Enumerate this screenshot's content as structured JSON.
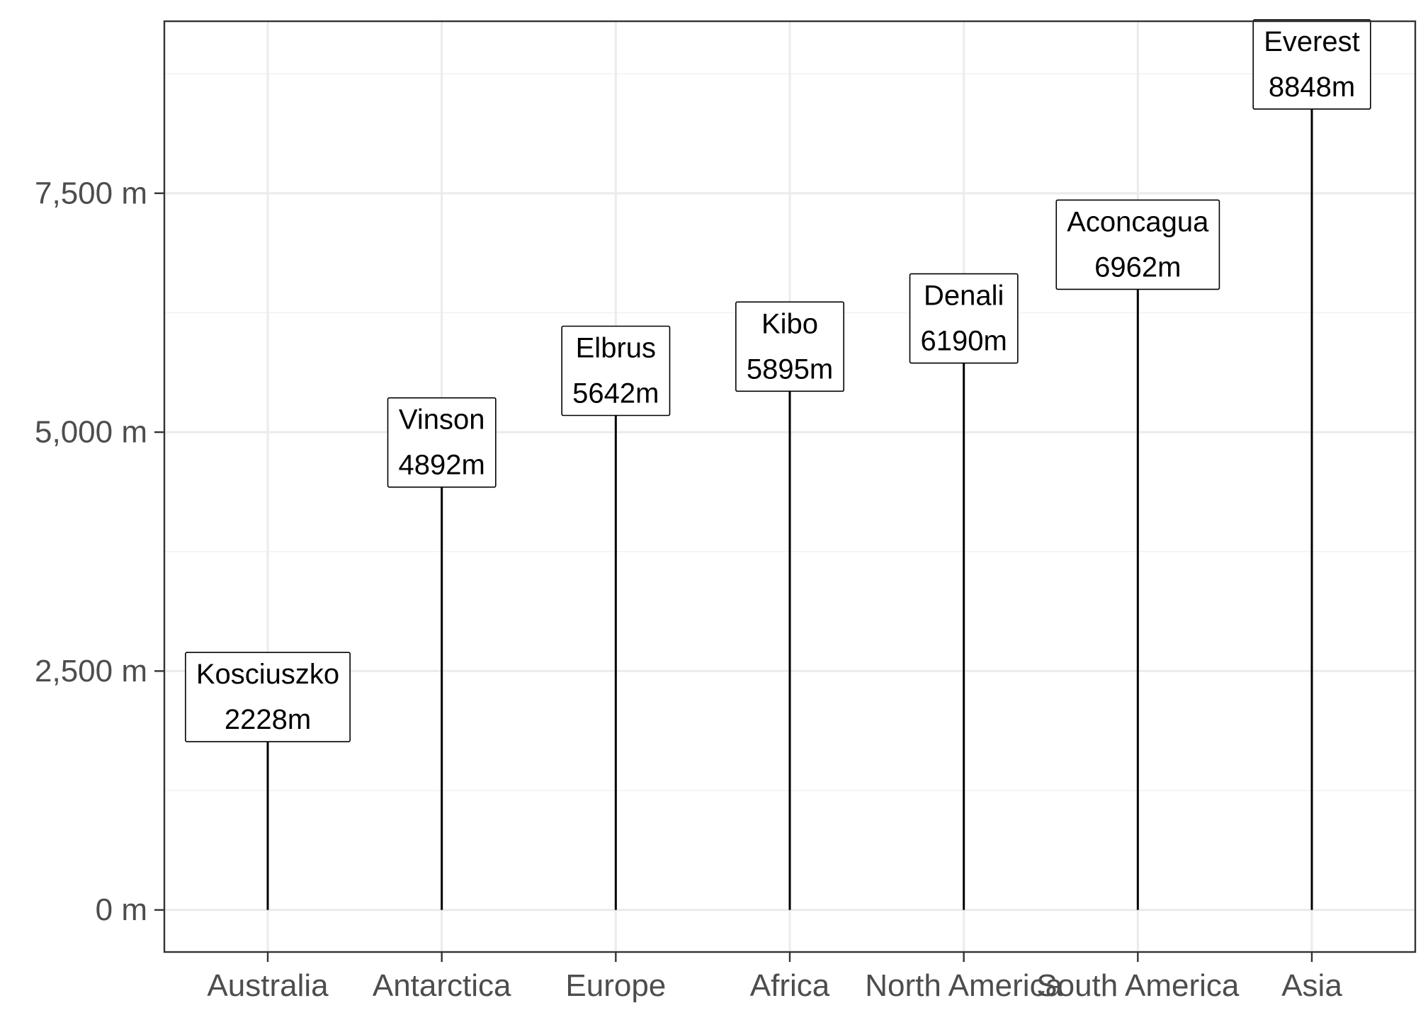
{
  "chart_data": {
    "type": "bar",
    "categories": [
      "Australia",
      "Antarctica",
      "Europe",
      "Africa",
      "North America",
      "South America",
      "Asia"
    ],
    "series": [
      {
        "values": [
          2228,
          4892,
          5642,
          5895,
          6190,
          6962,
          8848
        ]
      }
    ],
    "point_labels": [
      {
        "name": "Kosciuszko",
        "height": "2228m"
      },
      {
        "name": "Vinson",
        "height": "4892m"
      },
      {
        "name": "Elbrus",
        "height": "5642m"
      },
      {
        "name": "Kibo",
        "height": "5895m"
      },
      {
        "name": "Denali",
        "height": "6190m"
      },
      {
        "name": "Aconcagua",
        "height": "6962m"
      },
      {
        "name": "Everest",
        "height": "8848m"
      }
    ],
    "title": "",
    "xlabel": "",
    "ylabel": "",
    "ylim": [
      -440,
      9300
    ],
    "y_ticks": [
      0,
      2500,
      5000,
      7500
    ],
    "y_tick_labels": [
      "0 m",
      "2,500 m",
      "5,000 m",
      "7,500 m"
    ],
    "y_minor_ticks": [
      1250,
      3750,
      6250,
      8750
    ],
    "grid": true,
    "legend": "none"
  }
}
